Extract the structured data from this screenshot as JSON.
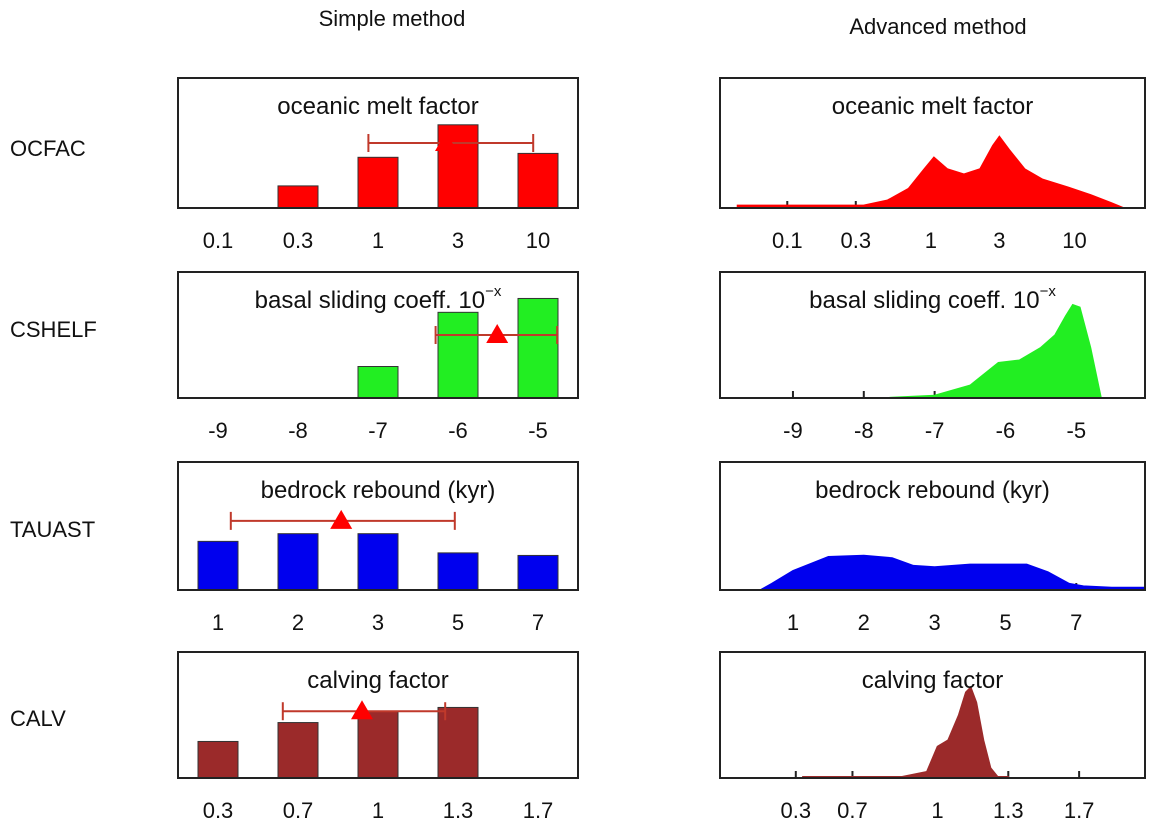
{
  "column_titles": [
    "Simple method",
    "Advanced method"
  ],
  "row_labels": [
    "OCFAC",
    "CSHELF",
    "TAUAST",
    "CALV"
  ],
  "chart_data": [
    {
      "type": "bar",
      "title": "oceanic melt factor",
      "color": "#ff0000",
      "categories": [
        "0.1",
        "0.3",
        "1",
        "3",
        "10"
      ],
      "values": [
        0,
        0.17,
        0.39,
        0.64,
        0.42
      ],
      "ylim": [
        0,
        1
      ],
      "marker": {
        "x": 2.85,
        "xmin": 1.88,
        "xmax": 3.94,
        "y": 0.5
      }
    },
    {
      "type": "bar",
      "title": "basal sliding coeff. 10",
      "title_superscript": "−x",
      "color": "#22ee22",
      "categories": [
        "-9",
        "-8",
        "-7",
        "-6",
        "-5"
      ],
      "values": [
        0,
        0,
        0.25,
        0.68,
        0.79
      ],
      "ylim": [
        0,
        1
      ],
      "marker": {
        "x": 3.49,
        "xmin": 2.72,
        "xmax": 4.24,
        "y": 0.5
      }
    },
    {
      "type": "bar",
      "title": "bedrock rebound (kyr)",
      "color": "#0000ee",
      "categories": [
        "1",
        "2",
        "3",
        "5",
        "7"
      ],
      "values": [
        0.38,
        0.44,
        0.44,
        0.29,
        0.27
      ],
      "ylim": [
        0,
        1
      ],
      "marker": {
        "x": 1.54,
        "xmin": 0.16,
        "xmax": 2.96,
        "y": 0.54
      }
    },
    {
      "type": "bar",
      "title": "calving factor",
      "color": "#9b2a2a",
      "categories": [
        "0.3",
        "0.7",
        "1",
        "1.3",
        "1.7"
      ],
      "values": [
        0.29,
        0.44,
        0.53,
        0.56,
        0
      ],
      "ylim": [
        0,
        1
      ],
      "marker": {
        "x": 1.8,
        "xmin": 0.81,
        "xmax": 2.84,
        "y": 0.53
      }
    },
    {
      "type": "area",
      "title": "oceanic melt factor",
      "color": "#ff0000",
      "xscale": "log",
      "x": [
        0.045,
        0.1,
        0.34,
        0.5,
        0.7,
        0.9,
        1.05,
        1.3,
        1.7,
        2.2,
        2.7,
        3.0,
        3.5,
        4.5,
        6,
        9,
        13,
        18,
        22
      ],
      "values": [
        0.02,
        0.02,
        0.02,
        0.06,
        0.15,
        0.3,
        0.39,
        0.3,
        0.26,
        0.3,
        0.48,
        0.55,
        0.45,
        0.3,
        0.22,
        0.16,
        0.1,
        0.04,
        0
      ],
      "xlim": [
        0.034,
        31
      ],
      "xticks": [
        0.1,
        0.3,
        1,
        3,
        10
      ],
      "ylim": [
        0,
        1
      ]
    },
    {
      "type": "area",
      "title": "basal sliding coeff. 10",
      "title_superscript": "−x",
      "color": "#22ee22",
      "x": [
        -7.75,
        -7,
        -6.5,
        -6.1,
        -5.8,
        -5.5,
        -5.3,
        -5.15,
        -5.05,
        -4.95,
        -4.8,
        -4.65
      ],
      "values": [
        0,
        0.02,
        0.1,
        0.28,
        0.3,
        0.4,
        0.5,
        0.65,
        0.74,
        0.72,
        0.4,
        0
      ],
      "xlim": [
        -10.03,
        -4.03
      ],
      "xticks": [
        -9,
        -8,
        -7,
        -6,
        -5
      ],
      "ylim": [
        0,
        1
      ]
    },
    {
      "type": "area",
      "title": "bedrock rebound (kyr)",
      "color": "#0000ee",
      "x": [
        -0.46,
        -0.3,
        0,
        0.5,
        1.0,
        1.4,
        1.7,
        2.0,
        2.5,
        3.0,
        3.3,
        3.6,
        3.9,
        4.1,
        4.5,
        4.97
      ],
      "values": [
        0,
        0.05,
        0.15,
        0.26,
        0.27,
        0.25,
        0.19,
        0.18,
        0.2,
        0.2,
        0.2,
        0.14,
        0.05,
        0.03,
        0.02,
        0.02
      ],
      "xlim": [
        -1.03,
        4.97
      ],
      "xticks": [
        {
          "value": 0,
          "label": "1"
        },
        {
          "value": 1,
          "label": "2"
        },
        {
          "value": 2,
          "label": "3"
        },
        {
          "value": 3,
          "label": "5"
        },
        {
          "value": 4,
          "label": "7"
        }
      ],
      "ylim": [
        0,
        1
      ]
    },
    {
      "type": "area",
      "title": "calving factor",
      "color": "#9b2a2a",
      "x": [
        0.1,
        1.5,
        1.85,
        2.0,
        2.15,
        2.3,
        2.4,
        2.47,
        2.55,
        2.65,
        2.75,
        2.85,
        3.0
      ],
      "values": [
        0.01,
        0.01,
        0.05,
        0.25,
        0.3,
        0.5,
        0.68,
        0.72,
        0.6,
        0.3,
        0.08,
        0.01,
        0.01
      ],
      "xlim": [
        -1.07,
        4.93
      ],
      "xticks": [
        {
          "value": 0,
          "label": "0.3"
        },
        {
          "value": 0.8,
          "label": "0.7"
        },
        {
          "value": 2,
          "label": "1"
        },
        {
          "value": 3,
          "label": "1.3"
        },
        {
          "value": 4,
          "label": "1.7"
        }
      ],
      "ylim": [
        0,
        1
      ]
    }
  ]
}
